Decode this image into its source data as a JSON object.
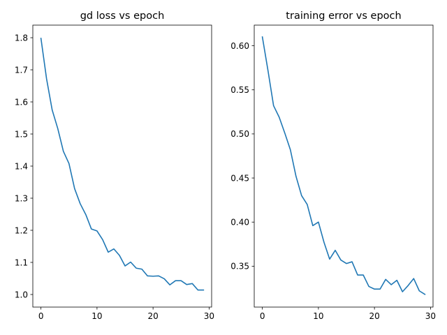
{
  "chart_data": [
    {
      "type": "line",
      "title": "gd loss vs epoch",
      "xlabel": "",
      "ylabel": "",
      "xlim": [
        -1.45,
        30.45
      ],
      "ylim": [
        0.9608,
        1.8392
      ],
      "xticks": [
        0,
        10,
        20,
        30
      ],
      "xtick_labels": [
        "0",
        "10",
        "20",
        "30"
      ],
      "yticks": [
        1.0,
        1.1,
        1.2,
        1.3,
        1.4,
        1.5,
        1.6,
        1.7,
        1.8
      ],
      "ytick_labels": [
        "1.0",
        "1.1",
        "1.2",
        "1.3",
        "1.4",
        "1.5",
        "1.6",
        "1.7",
        "1.8"
      ],
      "grid": false,
      "series": [
        {
          "color": "#1f77b4",
          "x": [
            0,
            1,
            2,
            3,
            4,
            5,
            6,
            7,
            8,
            9,
            10,
            11,
            12,
            13,
            14,
            15,
            16,
            17,
            18,
            19,
            20,
            21,
            22,
            23,
            24,
            25,
            26,
            27,
            28,
            29
          ],
          "y": [
            1.798,
            1.672,
            1.575,
            1.517,
            1.446,
            1.408,
            1.33,
            1.283,
            1.249,
            1.204,
            1.198,
            1.171,
            1.132,
            1.142,
            1.122,
            1.089,
            1.101,
            1.082,
            1.079,
            1.058,
            1.057,
            1.058,
            1.049,
            1.03,
            1.043,
            1.043,
            1.031,
            1.034,
            1.014,
            1.014
          ]
        }
      ]
    },
    {
      "type": "line",
      "title": "training error vs epoch",
      "xlabel": "",
      "ylabel": "",
      "xlim": [
        -1.45,
        30.45
      ],
      "ylim": [
        0.3036,
        0.6234
      ],
      "xticks": [
        0,
        10,
        20,
        30
      ],
      "xtick_labels": [
        "0",
        "10",
        "20",
        "30"
      ],
      "yticks": [
        0.35,
        0.4,
        0.45,
        0.5,
        0.55,
        0.6
      ],
      "ytick_labels": [
        "0.35",
        "0.40",
        "0.45",
        "0.50",
        "0.55",
        "0.60"
      ],
      "grid": false,
      "series": [
        {
          "color": "#1f77b4",
          "x": [
            0,
            1,
            2,
            3,
            4,
            5,
            6,
            7,
            8,
            9,
            10,
            11,
            12,
            13,
            14,
            15,
            16,
            17,
            18,
            19,
            20,
            21,
            22,
            23,
            24,
            25,
            26,
            27,
            28,
            29
          ],
          "y": [
            0.61,
            0.572,
            0.532,
            0.519,
            0.501,
            0.482,
            0.452,
            0.43,
            0.42,
            0.396,
            0.4,
            0.377,
            0.358,
            0.368,
            0.357,
            0.353,
            0.355,
            0.34,
            0.34,
            0.327,
            0.324,
            0.324,
            0.335,
            0.329,
            0.334,
            0.321,
            0.328,
            0.336,
            0.322,
            0.318
          ]
        }
      ]
    }
  ]
}
